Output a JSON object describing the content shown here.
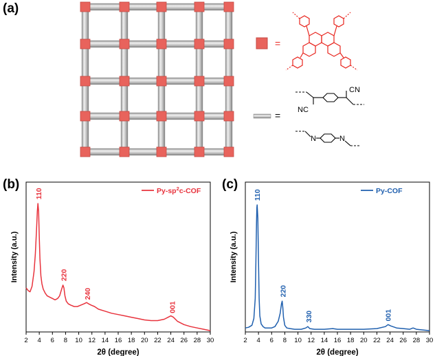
{
  "panel_labels": {
    "a": "(a)",
    "b": "(b)",
    "c": "(c)"
  },
  "schematic": {
    "node_equals": "=",
    "linker_equals": "=",
    "colors": {
      "node": "#e8635c",
      "rod": "#b9b9b9",
      "rod_light": "#e2e2e2",
      "pyrene": "#e8231c"
    },
    "linker_sp2c": {
      "cn_top": "CN",
      "cn_bottom": "NC"
    },
    "linker_imine": {
      "n_left": "N",
      "n_right": "N"
    }
  },
  "chart_data": [
    {
      "type": "line",
      "panel": "b",
      "xlabel_prefix": "2",
      "xlabel_theta": "θ",
      "xlabel_unit": " (degree)",
      "ylabel": "Intensity (a.u.)",
      "xlim": [
        2,
        30
      ],
      "x_ticks": [
        "2",
        "4",
        "6",
        "8",
        "10",
        "12",
        "14",
        "16",
        "18",
        "20",
        "22",
        "24",
        "26",
        "28",
        "30"
      ],
      "legend": {
        "name": "Py-sp",
        "superscript": "2",
        "suffix": "c-COF",
        "position": "top-right"
      },
      "color": "#e8323c",
      "series": [
        {
          "name": "Py-sp2c-COF",
          "x": [
            2.0,
            2.3,
            2.6,
            2.9,
            3.2,
            3.4,
            3.6,
            3.7,
            3.8,
            3.9,
            4.0,
            4.1,
            4.25,
            4.4,
            4.6,
            4.9,
            5.2,
            5.6,
            6.0,
            6.4,
            6.8,
            7.1,
            7.4,
            7.6,
            7.75,
            7.9,
            8.1,
            8.4,
            8.8,
            9.3,
            9.8,
            10.3,
            10.8,
            11.2,
            11.5,
            11.9,
            12.4,
            13,
            14,
            15,
            16,
            17,
            18,
            19,
            20,
            21,
            22,
            23,
            23.6,
            24.0,
            24.4,
            25,
            26,
            27,
            28,
            29,
            30
          ],
          "y": [
            0.33,
            0.31,
            0.3,
            0.34,
            0.45,
            0.58,
            0.78,
            0.9,
            0.96,
            0.9,
            0.72,
            0.55,
            0.42,
            0.36,
            0.32,
            0.29,
            0.27,
            0.26,
            0.25,
            0.24,
            0.25,
            0.27,
            0.32,
            0.35,
            0.33,
            0.27,
            0.23,
            0.21,
            0.2,
            0.19,
            0.19,
            0.2,
            0.21,
            0.22,
            0.21,
            0.2,
            0.19,
            0.17,
            0.155,
            0.14,
            0.13,
            0.12,
            0.11,
            0.1,
            0.09,
            0.085,
            0.085,
            0.095,
            0.11,
            0.12,
            0.11,
            0.08,
            0.055,
            0.04,
            0.03,
            0.02,
            0.01
          ]
        }
      ],
      "peak_labels": [
        {
          "text": "110",
          "x": 3.9,
          "y": 0.99
        },
        {
          "text": "220",
          "x": 7.7,
          "y": 0.38
        },
        {
          "text": "240",
          "x": 11.3,
          "y": 0.24
        },
        {
          "text": "001",
          "x": 24.2,
          "y": 0.14
        }
      ],
      "ylim": [
        0,
        1.12
      ]
    },
    {
      "type": "line",
      "panel": "c",
      "xlabel_prefix": "2",
      "xlabel_theta": "θ",
      "xlabel_unit": " (degree)",
      "ylabel": "Intensity (a.u.)",
      "xlim": [
        2,
        30
      ],
      "x_ticks": [
        "2",
        "4",
        "6",
        "8",
        "10",
        "12",
        "14",
        "16",
        "18",
        "20",
        "22",
        "24",
        "26",
        "28",
        "30"
      ],
      "legend": {
        "name": "Py-COF",
        "position": "top-right"
      },
      "color": "#1f5fae",
      "series": [
        {
          "name": "Py-COF",
          "x": [
            2.0,
            2.5,
            3.0,
            3.3,
            3.5,
            3.6,
            3.7,
            3.75,
            3.8,
            3.9,
            4.0,
            4.1,
            4.2,
            4.4,
            4.7,
            5.0,
            5.5,
            6.0,
            6.5,
            7.0,
            7.3,
            7.5,
            7.6,
            7.7,
            7.8,
            8.0,
            8.3,
            8.8,
            9.5,
            10.5,
            11.2,
            11.5,
            11.8,
            12.5,
            14,
            15.3,
            16,
            18,
            20,
            22,
            23.3,
            23.7,
            24.1,
            25,
            26,
            27,
            27.5,
            28,
            29,
            30
          ],
          "y": [
            0.03,
            0.035,
            0.05,
            0.1,
            0.25,
            0.5,
            0.82,
            0.93,
            0.95,
            0.85,
            0.55,
            0.25,
            0.12,
            0.06,
            0.04,
            0.03,
            0.03,
            0.03,
            0.04,
            0.08,
            0.14,
            0.21,
            0.23,
            0.18,
            0.11,
            0.05,
            0.03,
            0.025,
            0.02,
            0.02,
            0.03,
            0.04,
            0.025,
            0.02,
            0.02,
            0.025,
            0.02,
            0.02,
            0.02,
            0.025,
            0.04,
            0.055,
            0.045,
            0.03,
            0.025,
            0.02,
            0.03,
            0.02,
            0.015,
            0.01
          ]
        }
      ],
      "peak_labels": [
        {
          "text": "110",
          "x": 3.8,
          "y": 0.98
        },
        {
          "text": "220",
          "x": 7.7,
          "y": 0.26
        },
        {
          "text": "330",
          "x": 11.6,
          "y": 0.07
        },
        {
          "text": "001",
          "x": 23.7,
          "y": 0.08
        }
      ],
      "ylim": [
        0,
        1.12
      ]
    }
  ]
}
